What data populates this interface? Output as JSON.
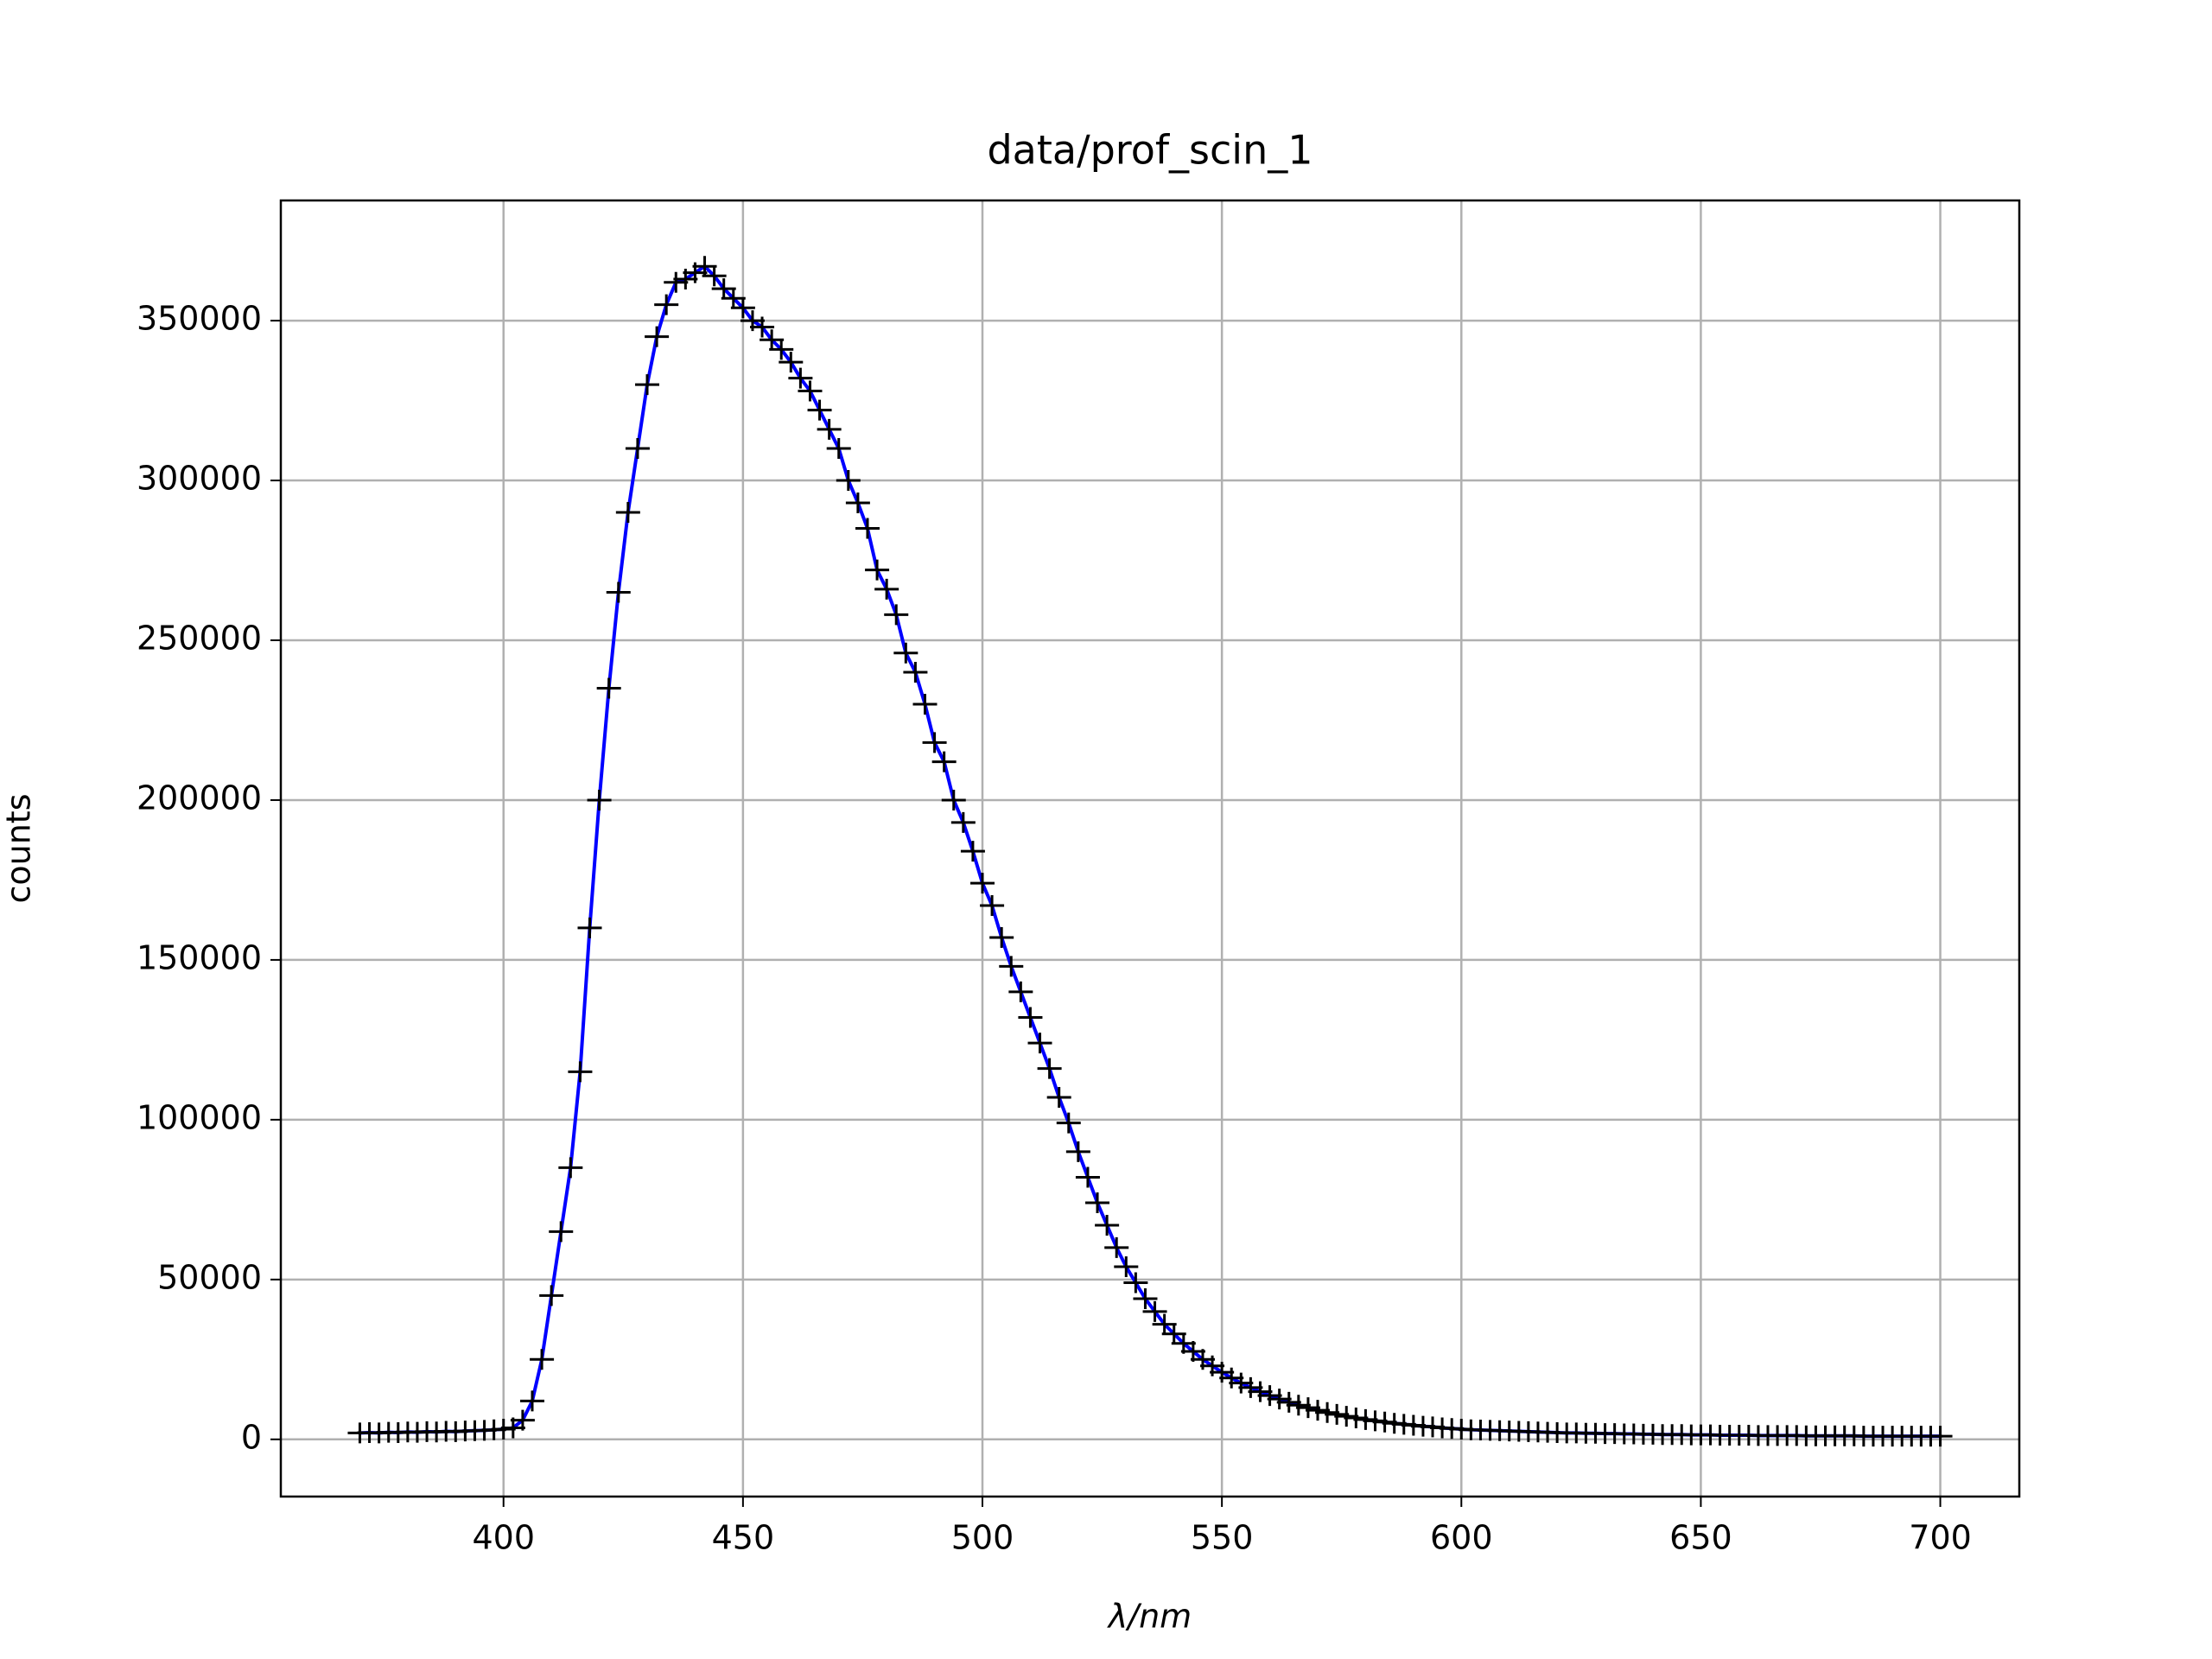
{
  "chart_data": {
    "type": "line",
    "title": "data/prof_scin_1",
    "xlabel": "λ/nm",
    "ylabel": "counts",
    "x": [
      370,
      372,
      374,
      376,
      378,
      380,
      382,
      384,
      386,
      388,
      390,
      392,
      394,
      396,
      398,
      400,
      402,
      404,
      406,
      408,
      410,
      412,
      414,
      416,
      418,
      420,
      422,
      424,
      426,
      428,
      430,
      432,
      434,
      436,
      438,
      440,
      442,
      444,
      446,
      448,
      450,
      452,
      454,
      456,
      458,
      460,
      462,
      464,
      466,
      468,
      470,
      472,
      474,
      476,
      478,
      480,
      482,
      484,
      486,
      488,
      490,
      492,
      494,
      496,
      498,
      500,
      502,
      504,
      506,
      508,
      510,
      512,
      514,
      516,
      518,
      520,
      522,
      524,
      526,
      528,
      530,
      532,
      534,
      536,
      538,
      540,
      542,
      544,
      546,
      548,
      550,
      552,
      554,
      556,
      558,
      560,
      562,
      564,
      566,
      568,
      570,
      572,
      574,
      576,
      578,
      580,
      582,
      584,
      586,
      588,
      590,
      592,
      594,
      596,
      598,
      600,
      602,
      604,
      606,
      608,
      610,
      612,
      614,
      616,
      618,
      620,
      622,
      624,
      626,
      628,
      630,
      632,
      634,
      636,
      638,
      640,
      642,
      644,
      646,
      648,
      650,
      652,
      654,
      656,
      658,
      660,
      662,
      664,
      666,
      668,
      670,
      672,
      674,
      676,
      678,
      680,
      682,
      684,
      686,
      688,
      690,
      692,
      694,
      696,
      698,
      700
    ],
    "series": [
      {
        "color": "#0000ff",
        "marker_color": "#000000",
        "values": [
          2000,
          2100,
          2000,
          2200,
          2100,
          2300,
          2200,
          2400,
          2300,
          2500,
          2400,
          2600,
          2700,
          2800,
          3000,
          3200,
          3600,
          6000,
          12000,
          25000,
          45000,
          65000,
          85000,
          115000,
          160000,
          200000,
          235000,
          265000,
          290000,
          310000,
          330000,
          345000,
          355000,
          362000,
          363000,
          365000,
          367000,
          364000,
          360000,
          357000,
          354000,
          350000,
          348000,
          344000,
          341000,
          337000,
          332000,
          328000,
          322000,
          316000,
          310000,
          300000,
          293000,
          285000,
          272000,
          266000,
          258000,
          246000,
          240000,
          230000,
          218000,
          212000,
          200000,
          193000,
          184000,
          174000,
          167000,
          157000,
          148000,
          140000,
          132000,
          124000,
          116000,
          107000,
          99000,
          90000,
          82000,
          74000,
          67000,
          60000,
          54000,
          49000,
          44000,
          40000,
          36000,
          33000,
          30000,
          27500,
          25000,
          23000,
          21000,
          19200,
          17600,
          16200,
          14900,
          13700,
          12600,
          11600,
          10700,
          9900,
          9100,
          8400,
          7800,
          7200,
          6700,
          6200,
          5800,
          5400,
          5000,
          4700,
          4400,
          4100,
          3900,
          3600,
          3400,
          3200,
          3000,
          2900,
          2800,
          2700,
          2600,
          2500,
          2400,
          2300,
          2200,
          2100,
          2000,
          2000,
          1900,
          1900,
          1800,
          1800,
          1700,
          1700,
          1600,
          1600,
          1500,
          1500,
          1500,
          1400,
          1400,
          1400,
          1300,
          1300,
          1300,
          1300,
          1200,
          1200,
          1200,
          1200,
          1200,
          1100,
          1100,
          1100,
          1100,
          1100,
          1100,
          1000,
          1000,
          1000,
          1000,
          1000,
          1000,
          1000,
          1000,
          1000
        ]
      }
    ],
    "xlim": [
      353.5,
      716.5
    ],
    "ylim": [
      -17900,
      387600
    ],
    "xticks": [
      400,
      450,
      500,
      550,
      600,
      650,
      700
    ],
    "yticks": [
      0,
      50000,
      100000,
      150000,
      200000,
      250000,
      300000,
      350000
    ],
    "grid": true
  }
}
